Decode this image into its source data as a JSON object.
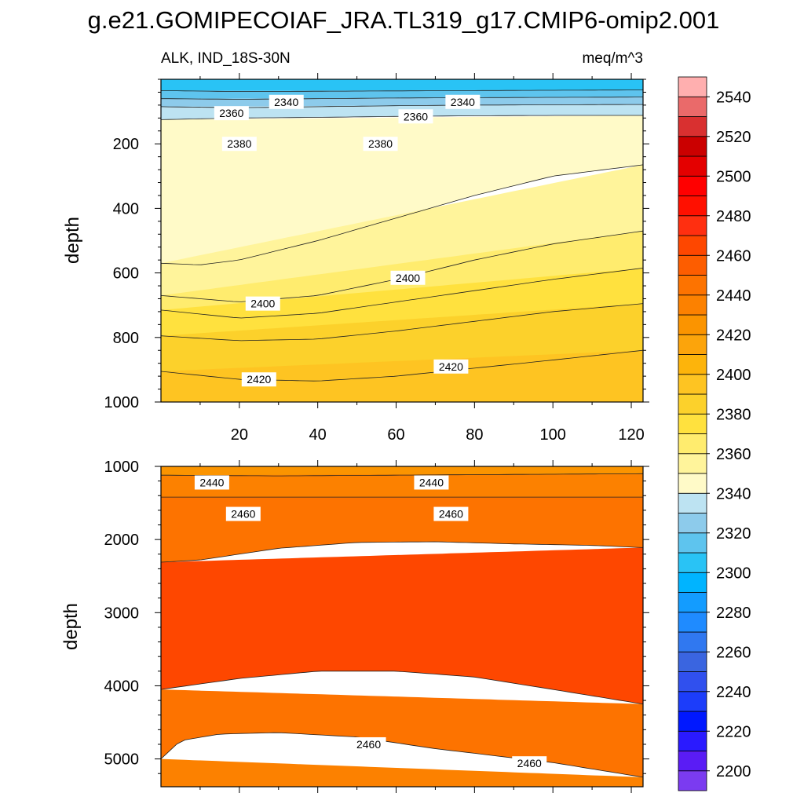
{
  "title": "g.e21.GOMIPECOIAF_JRA.TL319_g17.CMIP6-omip2.001",
  "chart_data": [
    {
      "type": "contour",
      "panel": "upper",
      "subtitle_left": "ALK, IND_18S-30N",
      "subtitle_right": "meq/m^3",
      "ylabel": "depth",
      "xlabel": "",
      "xlim": [
        0,
        123
      ],
      "ylim": [
        1000,
        0
      ],
      "xticks": [
        20,
        40,
        60,
        80,
        100,
        120
      ],
      "yticks": [
        200,
        400,
        600,
        800,
        1000
      ],
      "contour_interval": 10,
      "bands": [
        {
          "color": "#29c3f5",
          "top": [
            [
              0,
              0
            ],
            [
              123,
              0
            ]
          ],
          "bottom": [
            [
              0,
              35
            ],
            [
              20,
              38
            ],
            [
              40,
              37
            ],
            [
              60,
              36
            ],
            [
              80,
              35
            ],
            [
              100,
              34
            ],
            [
              123,
              33
            ]
          ]
        },
        {
          "color": "#5ec4ee",
          "top": [
            [
              0,
              35
            ],
            [
              123,
              33
            ]
          ],
          "bottom": [
            [
              0,
              60
            ],
            [
              20,
              62
            ],
            [
              40,
              60
            ],
            [
              60,
              58
            ],
            [
              80,
              57
            ],
            [
              100,
              56
            ],
            [
              123,
              55
            ]
          ]
        },
        {
          "color": "#8dcbeb",
          "top": [
            [
              0,
              60
            ],
            [
              123,
              55
            ]
          ],
          "bottom": [
            [
              0,
              85
            ],
            [
              20,
              88
            ],
            [
              40,
              85
            ],
            [
              60,
              82
            ],
            [
              80,
              80
            ],
            [
              100,
              79
            ],
            [
              123,
              78
            ]
          ]
        },
        {
          "color": "#bde3f2",
          "top": [
            [
              0,
              85
            ],
            [
              123,
              78
            ]
          ],
          "bottom": [
            [
              0,
              125
            ],
            [
              20,
              120
            ],
            [
              40,
              118
            ],
            [
              60,
              115
            ],
            [
              80,
              113
            ],
            [
              100,
              112
            ],
            [
              123,
              112
            ]
          ]
        },
        {
          "color": "#fffac8",
          "top": [
            [
              0,
              125
            ],
            [
              123,
              112
            ]
          ],
          "bottom": [
            [
              0,
              570
            ],
            [
              10,
              575
            ],
            [
              20,
              560
            ],
            [
              40,
              500
            ],
            [
              60,
              430
            ],
            [
              80,
              360
            ],
            [
              100,
              300
            ],
            [
              123,
              265
            ]
          ]
        },
        {
          "color": "#fff49b",
          "top": [
            [
              0,
              570
            ],
            [
              123,
              265
            ]
          ],
          "bottom": [
            [
              0,
              670
            ],
            [
              20,
              690
            ],
            [
              40,
              670
            ],
            [
              60,
              620
            ],
            [
              80,
              560
            ],
            [
              100,
              510
            ],
            [
              123,
              470
            ]
          ]
        },
        {
          "color": "#ffec6e",
          "top": [
            [
              0,
              670
            ],
            [
              123,
              470
            ]
          ],
          "bottom": [
            [
              0,
              715
            ],
            [
              20,
              740
            ],
            [
              40,
              725
            ],
            [
              60,
              690
            ],
            [
              80,
              655
            ],
            [
              100,
              620
            ],
            [
              123,
              585
            ]
          ]
        },
        {
          "color": "#ffe13e",
          "top": [
            [
              0,
              715
            ],
            [
              123,
              585
            ]
          ],
          "bottom": [
            [
              0,
              795
            ],
            [
              20,
              810
            ],
            [
              40,
              805
            ],
            [
              60,
              780
            ],
            [
              80,
              750
            ],
            [
              100,
              720
            ],
            [
              123,
              695
            ]
          ]
        },
        {
          "color": "#fcd12b",
          "top": [
            [
              0,
              795
            ],
            [
              123,
              695
            ]
          ],
          "bottom": [
            [
              0,
              905
            ],
            [
              20,
              930
            ],
            [
              40,
              935
            ],
            [
              60,
              920
            ],
            [
              80,
              895
            ],
            [
              100,
              870
            ],
            [
              123,
              840
            ]
          ]
        },
        {
          "color": "#fec422",
          "top": [
            [
              0,
              905
            ],
            [
              123,
              840
            ]
          ],
          "bottom": [
            [
              0,
              1000
            ],
            [
              123,
              1000
            ]
          ]
        }
      ],
      "contour_labels": [
        {
          "text": "2340",
          "x": 32,
          "y": 70
        },
        {
          "text": "2340",
          "x": 77,
          "y": 70
        },
        {
          "text": "2360",
          "x": 18,
          "y": 105
        },
        {
          "text": "2360",
          "x": 65,
          "y": 115
        },
        {
          "text": "2380",
          "x": 20,
          "y": 200
        },
        {
          "text": "2380",
          "x": 56,
          "y": 200
        },
        {
          "text": "2400",
          "x": 26,
          "y": 695
        },
        {
          "text": "2400",
          "x": 63,
          "y": 615
        },
        {
          "text": "2420",
          "x": 25,
          "y": 930
        },
        {
          "text": "2420",
          "x": 74,
          "y": 890
        }
      ]
    },
    {
      "type": "contour",
      "panel": "lower",
      "ylabel": "depth",
      "xlabel": "",
      "xlim": [
        0,
        123
      ],
      "ylim": [
        5380,
        1000
      ],
      "xticks": [
        20,
        40,
        60,
        80,
        100,
        120
      ],
      "yticks": [
        1000,
        2000,
        3000,
        4000,
        5000
      ],
      "bands": [
        {
          "color": "#fb9400",
          "top": [
            [
              0,
              1000
            ],
            [
              123,
              1000
            ]
          ],
          "bottom": [
            [
              0,
              1120
            ],
            [
              30,
              1130
            ],
            [
              60,
              1120
            ],
            [
              90,
              1110
            ],
            [
              123,
              1100
            ]
          ]
        },
        {
          "color": "#fc8100",
          "top": [
            [
              0,
              1120
            ],
            [
              123,
              1100
            ]
          ],
          "bottom": [
            [
              0,
              1420
            ],
            [
              30,
              1420
            ],
            [
              60,
              1420
            ],
            [
              90,
              1420
            ],
            [
              123,
              1420
            ]
          ]
        },
        {
          "color": "#fd7300",
          "top": [
            [
              0,
              1420
            ],
            [
              123,
              1420
            ]
          ],
          "bottom": [
            [
              0,
              2310
            ],
            [
              10,
              2280
            ],
            [
              30,
              2120
            ],
            [
              50,
              2040
            ],
            [
              70,
              2030
            ],
            [
              90,
              2060
            ],
            [
              110,
              2080
            ],
            [
              123,
              2110
            ]
          ]
        },
        {
          "color": "#fe4700",
          "top": [
            [
              0,
              2310
            ],
            [
              123,
              2110
            ]
          ],
          "bottom": [
            [
              0,
              4050
            ],
            [
              20,
              3900
            ],
            [
              40,
              3800
            ],
            [
              60,
              3800
            ],
            [
              80,
              3880
            ],
            [
              100,
              4050
            ],
            [
              123,
              4250
            ]
          ]
        },
        {
          "color": "#fd7300",
          "top": [
            [
              0,
              4050
            ],
            [
              123,
              4250
            ]
          ],
          "bottom": [
            [
              0,
              5000
            ],
            [
              5,
              4750
            ],
            [
              15,
              4660
            ],
            [
              30,
              4640
            ],
            [
              50,
              4700
            ],
            [
              70,
              4860
            ],
            [
              100,
              5050
            ],
            [
              123,
              5250
            ]
          ]
        },
        {
          "color": "#fc8100",
          "top": [
            [
              0,
              5000
            ],
            [
              123,
              5250
            ]
          ],
          "bottom": [
            [
              0,
              5380
            ],
            [
              123,
              5380
            ]
          ]
        }
      ],
      "contour_labels": [
        {
          "text": "2440",
          "x": 13,
          "y": 1220
        },
        {
          "text": "2440",
          "x": 69,
          "y": 1220
        },
        {
          "text": "2460",
          "x": 21,
          "y": 1650
        },
        {
          "text": "2460",
          "x": 74,
          "y": 1650
        },
        {
          "text": "2460",
          "x": 53,
          "y": 4800
        },
        {
          "text": "2460",
          "x": 94,
          "y": 5060
        }
      ]
    }
  ],
  "colorbar": {
    "orientation": "vertical",
    "colors": [
      "#7b3bf0",
      "#5a1cf5",
      "#2a1aff",
      "#0018ff",
      "#1c3dfa",
      "#3050ee",
      "#3a65e0",
      "#3078f0",
      "#1f8bff",
      "#139cff",
      "#00b4ff",
      "#29c3f5",
      "#5ec4ee",
      "#8dcbeb",
      "#bde3f2",
      "#fffac8",
      "#fff49b",
      "#ffec6e",
      "#ffe13e",
      "#fcd12b",
      "#fec422",
      "#fdb40b",
      "#fca40b",
      "#fb9400",
      "#fc8100",
      "#fd7300",
      "#fd5d00",
      "#fe4700",
      "#ff2f10",
      "#ff1000",
      "#ff0000",
      "#e40000",
      "#cb0000",
      "#d93030",
      "#ea6a6a",
      "#ffafaf"
    ],
    "tick_labels": [
      "2200",
      "2220",
      "2240",
      "2260",
      "2280",
      "2300",
      "2320",
      "2340",
      "2360",
      "2380",
      "2400",
      "2420",
      "2440",
      "2460",
      "2480",
      "2500",
      "2520",
      "2540"
    ]
  }
}
